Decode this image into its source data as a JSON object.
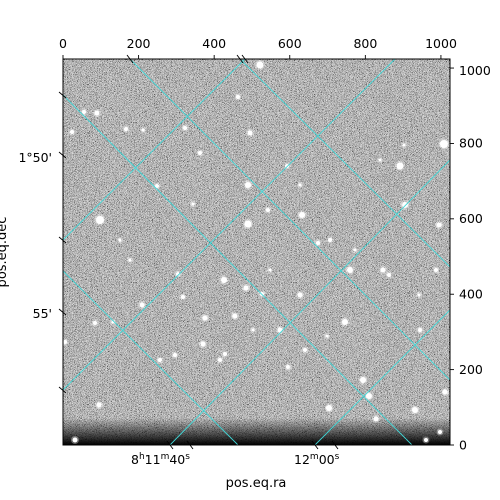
{
  "figure": {
    "xlabel": "pos.eq.ra",
    "ylabel": "pos.eq.dec",
    "top_ticks": [
      "0",
      "200",
      "400",
      "600",
      "800",
      "1000"
    ],
    "top_tick_values": [
      0,
      200,
      400,
      600,
      800,
      1000
    ],
    "right_ticks": [
      "0",
      "200",
      "400",
      "600",
      "800",
      "1000"
    ],
    "right_tick_values": [
      0,
      200,
      400,
      600,
      800,
      1000
    ],
    "pixel_range": [
      0,
      1024
    ],
    "ra_ticks": [
      {
        "main": "8",
        "sup1": "h",
        "mid": "11",
        "sup2": "m",
        "sec": "40",
        "sup3": "s"
      },
      {
        "main": "12",
        "sup1": "m",
        "mid": "00",
        "sup2": "s",
        "sec": "",
        "sup3": ""
      }
    ],
    "dec_ticks": [
      "1°50'",
      "55'"
    ],
    "grid_color": "#3fd7d7",
    "image_bg": "#7a7a7a"
  }
}
